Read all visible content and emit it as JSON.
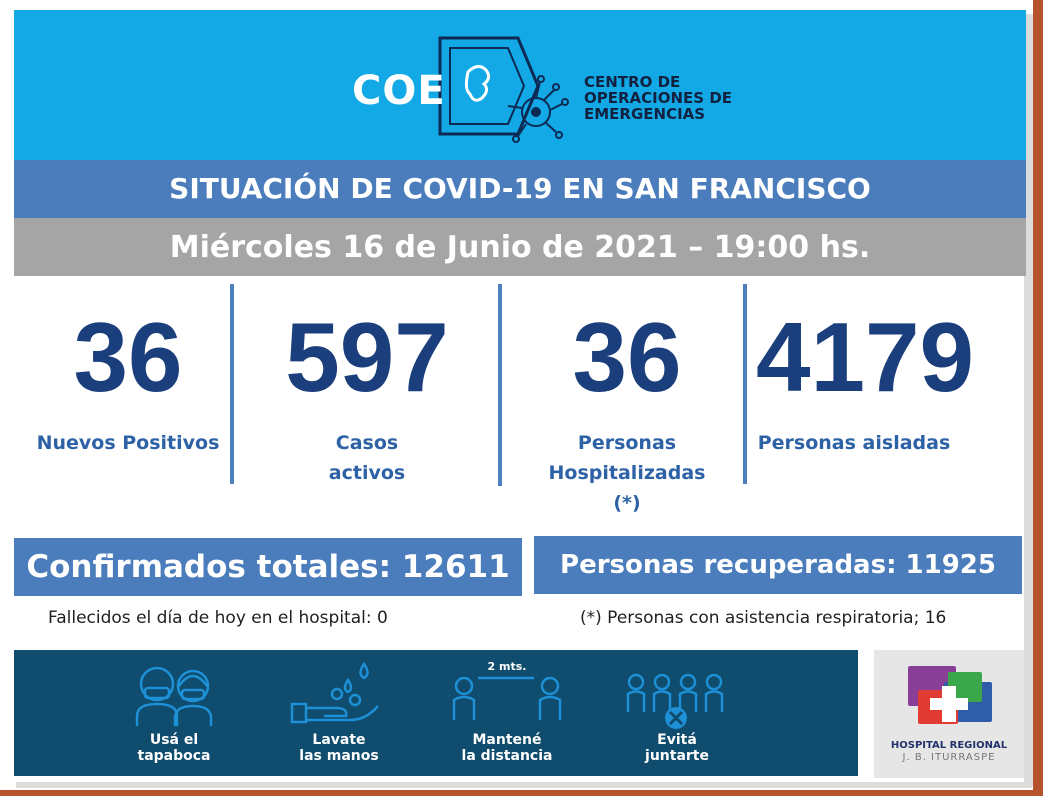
{
  "header": {
    "logo_text": "COE",
    "org_line1": "CENTRO DE",
    "org_line2": "OPERACIONES DE",
    "org_line3": "EMERGENCIAS"
  },
  "title": "SITUACIÓN DE COVID-19 EN SAN FRANCISCO",
  "date": "Miércoles 16 de Junio de 2021 – 19:00 hs.",
  "stats": [
    {
      "value": "36",
      "label_lines": [
        "Nuevos Positivos"
      ]
    },
    {
      "value": "597",
      "label_lines": [
        "Casos",
        "activos"
      ]
    },
    {
      "value": "36",
      "label_lines": [
        "Personas",
        "Hospitalizadas",
        "(*)"
      ]
    },
    {
      "value": "4179",
      "label_lines": [
        "Personas aisladas"
      ]
    }
  ],
  "totals": {
    "confirmed": "Confirmados totales: 12611",
    "recovered": "Personas recuperadas: 11925"
  },
  "notes": {
    "deceased": "Fallecidos el día de hoy en el hospital: 0",
    "respiratory": "(*) Personas con asistencia respiratoria; 16"
  },
  "prevention": [
    {
      "icon": "mask-people-icon",
      "line1": "Usá el",
      "line2": "tapaboca"
    },
    {
      "icon": "hand-wash-icon",
      "line1": "Lavate",
      "line2": "las manos"
    },
    {
      "icon": "distance-icon",
      "line1": "Mantené",
      "line2": "la distancia",
      "distance_text": "2 mts."
    },
    {
      "icon": "no-gathering-icon",
      "line1": "Evitá",
      "line2": "juntarte"
    }
  ],
  "hospital": {
    "line1": "HOSPITAL REGIONAL",
    "line2": "J. B. ITURRASPE"
  },
  "colors": {
    "header": "#12a9e6",
    "title_bar": "#4b7dbd",
    "date_bar": "#a5a5a5",
    "number": "#1b3e7c",
    "label": "#2e62a6",
    "prevention_band": "#0f4c6d"
  }
}
